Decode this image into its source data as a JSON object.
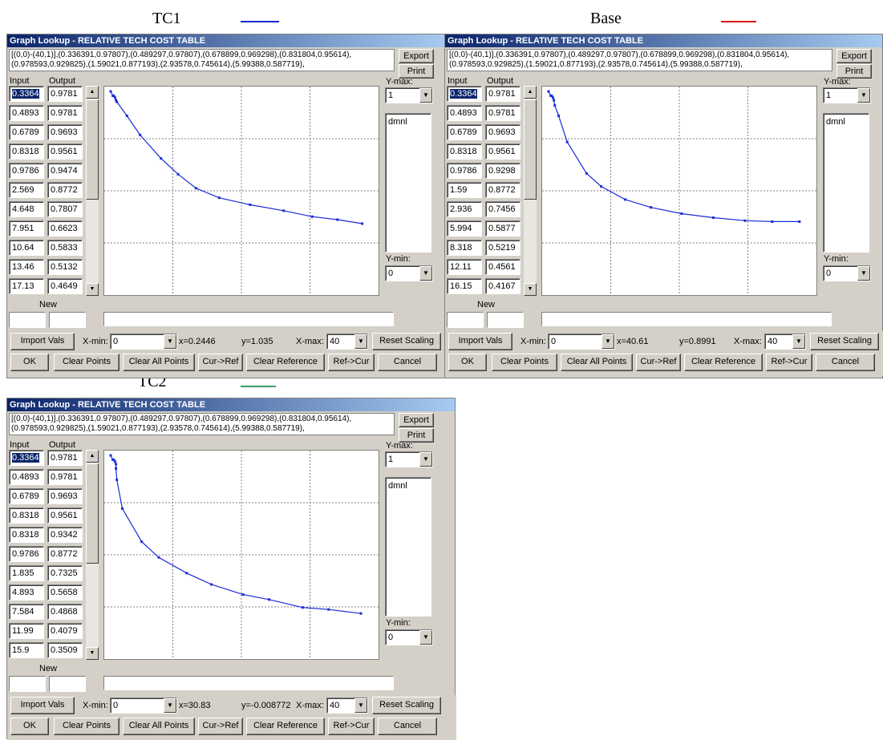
{
  "captions": {
    "tc1": {
      "label": "TC1",
      "color": "#1a2bd6"
    },
    "base": {
      "label": "Base",
      "color": "#e01010"
    },
    "tc2": {
      "label": "TC2",
      "color": "#3a9a6a"
    }
  },
  "common": {
    "title": "Graph Lookup - RELATIVE TECH COST TABLE",
    "equation_line1": "[(0,0)-(40,1)],(0.336391,0.97807),(0.489297,0.97807),(0.678899,0.969298),(0.831804,0.95614),",
    "equation_line2": "(0.978593,0.929825),(1.59021,0.877193),(2.93578,0.745614),(5.99388,0.587719),",
    "export_label": "Export",
    "print_label": "Print",
    "input_header": "Input",
    "output_header": "Output",
    "ymax_label": "Y-max:",
    "ymax_value": "1",
    "ymin_label": "Y-min:",
    "ymin_value": "0",
    "units": "dmnl",
    "new_label": "New",
    "import_label": "Import Vals",
    "xmin_label": "X-min:",
    "xmin_value": "0",
    "xmax_label": "X-max:",
    "xmax_value": "40",
    "reset_label": "Reset Scaling",
    "ok_label": "OK",
    "clear_points_label": "Clear Points",
    "clear_all_label": "Clear All Points",
    "cur_ref_label": "Cur->Ref",
    "clear_ref_label": "Clear Reference",
    "ref_cur_label": "Ref->Cur",
    "cancel_label": "Cancel",
    "line_color": "#1a2bd6",
    "grid_color": "#808080"
  },
  "windows": {
    "tc1": {
      "rows": [
        {
          "input": "0.3364",
          "output": "0.9781"
        },
        {
          "input": "0.4893",
          "output": "0.9781"
        },
        {
          "input": "0.6789",
          "output": "0.9693"
        },
        {
          "input": "0.8318",
          "output": "0.9561"
        },
        {
          "input": "0.9786",
          "output": "0.9474"
        },
        {
          "input": "2.569",
          "output": "0.8772"
        },
        {
          "input": "4.648",
          "output": "0.7807"
        },
        {
          "input": "7.951",
          "output": "0.6623"
        },
        {
          "input": "10.64",
          "output": "0.5833"
        },
        {
          "input": "13.46",
          "output": "0.5132"
        },
        {
          "input": "17.13",
          "output": "0.4649"
        }
      ],
      "x_readout": "x=0.2446",
      "y_readout": "y=1.035",
      "chart_data": {
        "type": "line",
        "xlim": [
          0,
          40
        ],
        "ylim": [
          0,
          1
        ],
        "grid": true,
        "x": [
          0,
          0.3364,
          0.4893,
          0.6789,
          0.8318,
          0.9786,
          2.569,
          4.648,
          7.951,
          10.64,
          13.46,
          17.13,
          22.0,
          27.3,
          31.8,
          35.8,
          39.7
        ],
        "y": [
          1.0,
          0.9781,
          0.9781,
          0.9693,
          0.9561,
          0.9474,
          0.8772,
          0.7807,
          0.6623,
          0.5833,
          0.5132,
          0.4649,
          0.43,
          0.4,
          0.37,
          0.355,
          0.335
        ]
      }
    },
    "base": {
      "rows": [
        {
          "input": "0.3364",
          "output": "0.9781"
        },
        {
          "input": "0.4893",
          "output": "0.9781"
        },
        {
          "input": "0.6789",
          "output": "0.9693"
        },
        {
          "input": "0.8318",
          "output": "0.9561"
        },
        {
          "input": "0.9786",
          "output": "0.9298"
        },
        {
          "input": "1.59",
          "output": "0.8772"
        },
        {
          "input": "2.936",
          "output": "0.7456"
        },
        {
          "input": "5.994",
          "output": "0.5877"
        },
        {
          "input": "8.318",
          "output": "0.5219"
        },
        {
          "input": "12.11",
          "output": "0.4561"
        },
        {
          "input": "16.15",
          "output": "0.4167"
        }
      ],
      "x_readout": "x=40.61",
      "y_readout": "y=0.8991",
      "chart_data": {
        "type": "line",
        "xlim": [
          0,
          40
        ],
        "ylim": [
          0,
          1
        ],
        "grid": true,
        "x": [
          0,
          0.3364,
          0.4893,
          0.6789,
          0.8318,
          0.9786,
          1.59,
          2.936,
          5.994,
          8.318,
          12.11,
          16.15,
          21.0,
          26.0,
          31.0,
          35.3,
          39.6
        ],
        "y": [
          1.0,
          0.9781,
          0.9781,
          0.9693,
          0.9561,
          0.9298,
          0.8772,
          0.7456,
          0.5877,
          0.5219,
          0.4561,
          0.4167,
          0.385,
          0.365,
          0.35,
          0.345,
          0.345
        ]
      }
    },
    "tc2": {
      "rows": [
        {
          "input": "0.3364",
          "output": "0.9781"
        },
        {
          "input": "0.4893",
          "output": "0.9781"
        },
        {
          "input": "0.6789",
          "output": "0.9693"
        },
        {
          "input": "0.8318",
          "output": "0.9561"
        },
        {
          "input": "0.8318",
          "output": "0.9342"
        },
        {
          "input": "0.9786",
          "output": "0.8772"
        },
        {
          "input": "1.835",
          "output": "0.7325"
        },
        {
          "input": "4.893",
          "output": "0.5658"
        },
        {
          "input": "7.584",
          "output": "0.4868"
        },
        {
          "input": "11.99",
          "output": "0.4079"
        },
        {
          "input": "15.9",
          "output": "0.3509"
        }
      ],
      "x_readout": "x=30.83",
      "y_readout": "y=-0.008772",
      "chart_data": {
        "type": "line",
        "xlim": [
          0,
          40
        ],
        "ylim": [
          0,
          1
        ],
        "grid": true,
        "x": [
          0,
          0.3364,
          0.4893,
          0.6789,
          0.8318,
          0.8318,
          0.9786,
          1.835,
          4.893,
          7.584,
          11.99,
          15.9,
          20.9,
          25.0,
          30.3,
          34.4,
          39.5
        ],
        "y": [
          1.0,
          0.9781,
          0.9781,
          0.9693,
          0.9561,
          0.9342,
          0.8772,
          0.7325,
          0.5658,
          0.4868,
          0.4079,
          0.3509,
          0.3,
          0.275,
          0.235,
          0.225,
          0.205
        ]
      }
    }
  }
}
